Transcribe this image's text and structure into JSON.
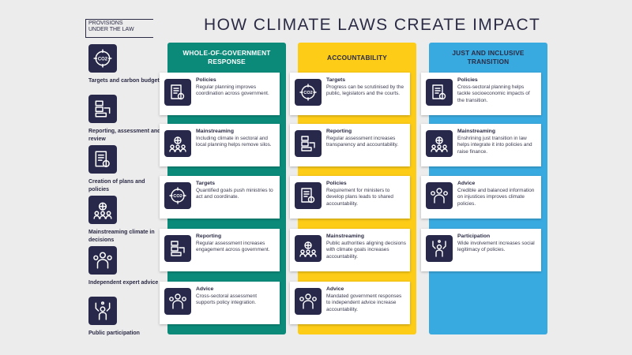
{
  "title": "HOW CLIMATE LAWS CREATE IMPACT",
  "provisions": {
    "heading_line1": "PROVISIONS",
    "heading_line2": "UNDER THE LAW",
    "items": [
      {
        "label": "Targets and carbon budgets",
        "icon": "co2-target-icon"
      },
      {
        "label": "Reporting, assessment and review",
        "icon": "report-icon"
      },
      {
        "label": "Creation of plans and policies",
        "icon": "document-icon"
      },
      {
        "label": "Mainstreaming climate in decisions",
        "icon": "people-globe-icon"
      },
      {
        "label": "Independent expert advice",
        "icon": "advisor-icon"
      },
      {
        "label": "Public participation",
        "icon": "raised-hands-icon"
      }
    ]
  },
  "columns": [
    {
      "heading": "WHOLE-OF-GOVERNMENT RESPONSE",
      "color": "#0b8a7a",
      "cards": [
        {
          "title": "Policies",
          "body": "Regular planning improves coordination across government.",
          "icon": "document-icon"
        },
        {
          "title": "Mainstreaming",
          "body": "Including climate in sectoral and local planning helps remove silos.",
          "icon": "people-globe-icon"
        },
        {
          "title": "Targets",
          "body": "Quantified goals push ministries to act and coordinate.",
          "icon": "co2-target-icon"
        },
        {
          "title": "Reporting",
          "body": "Regular assessment increases engagement across government.",
          "icon": "report-icon"
        },
        {
          "title": "Advice",
          "body": "Cross-sectoral assessment supports policy integration.",
          "icon": "advisor-icon"
        }
      ]
    },
    {
      "heading": "ACCOUNTABILITY",
      "color": "#fccc17",
      "cards": [
        {
          "title": "Targets",
          "body": "Progress can be scrutinised by the public, legislators and the courts.",
          "icon": "co2-target-icon"
        },
        {
          "title": "Reporting",
          "body": "Regular assessment increases transparency and accountability.",
          "icon": "report-icon"
        },
        {
          "title": "Policies",
          "body": "Requirement for ministers to develop plans leads to shared accountability.",
          "icon": "document-icon"
        },
        {
          "title": "Mainstreaming",
          "body": "Public authorities aligning decisions with climate goals increases accountability.",
          "icon": "people-globe-icon"
        },
        {
          "title": "Advice",
          "body": "Mandated government responses to independent advice increase accountability.",
          "icon": "advisor-icon"
        }
      ]
    },
    {
      "heading": "JUST AND INCLUSIVE TRANSITION",
      "color": "#39aae0",
      "cards": [
        {
          "title": "Policies",
          "body": "Cross-sectoral planning helps tackle socioeconomic impacts of the transition.",
          "icon": "document-icon"
        },
        {
          "title": "Mainstreaming",
          "body": "Enshrining just transition in law helps integrate it into policies and raise finance.",
          "icon": "people-globe-icon"
        },
        {
          "title": "Advice",
          "body": "Credible and balanced information on injustices improves climate policies.",
          "icon": "advisor-icon"
        },
        {
          "title": "Participation",
          "body": "Wide involvement increases social legitimacy of policies.",
          "icon": "raised-hands-icon"
        }
      ]
    }
  ]
}
